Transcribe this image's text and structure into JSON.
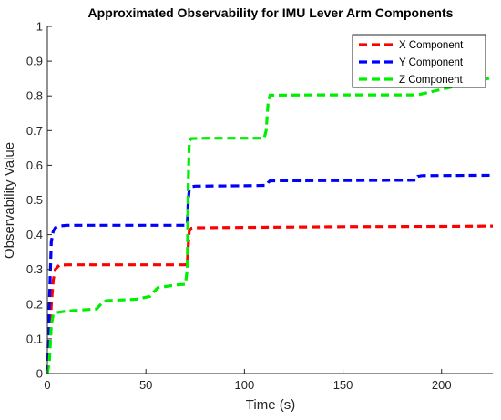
{
  "chart_data": {
    "type": "line",
    "title": "Approximated Observability for IMU Lever Arm Components",
    "xlabel": "Time (s)",
    "ylabel": "Observability Value",
    "xlim": [
      0,
      226
    ],
    "ylim": [
      0,
      1
    ],
    "xticks": [
      0,
      50,
      100,
      150,
      200
    ],
    "yticks": [
      0,
      0.1,
      0.2,
      0.3,
      0.4,
      0.5,
      0.6,
      0.7,
      0.8,
      0.9,
      1
    ],
    "grid": false,
    "legend_position": "top-right",
    "series": [
      {
        "name": "X Component",
        "color": "#ff0000",
        "dash": "dashed",
        "x": [
          0,
          1,
          2,
          3,
          4,
          6,
          10,
          50,
          70,
          71,
          71.5,
          72,
          73,
          75,
          100,
          150,
          200,
          226
        ],
        "y": [
          0,
          0.08,
          0.2,
          0.27,
          0.3,
          0.312,
          0.313,
          0.313,
          0.313,
          0.315,
          0.37,
          0.41,
          0.418,
          0.42,
          0.421,
          0.423,
          0.424,
          0.425
        ]
      },
      {
        "name": "Y Component",
        "color": "#0000ff",
        "dash": "dashed",
        "x": [
          0,
          1,
          2,
          3,
          4,
          6,
          10,
          50,
          70,
          71,
          71.5,
          72,
          73,
          75,
          100,
          111,
          112,
          113,
          150,
          187,
          188,
          190,
          226
        ],
        "y": [
          0,
          0.2,
          0.38,
          0.41,
          0.42,
          0.425,
          0.427,
          0.427,
          0.427,
          0.43,
          0.5,
          0.53,
          0.538,
          0.54,
          0.541,
          0.542,
          0.55,
          0.555,
          0.556,
          0.557,
          0.568,
          0.57,
          0.571
        ]
      },
      {
        "name": "Z Component",
        "color": "#00ee00",
        "dash": "dashed",
        "x": [
          0,
          1,
          2,
          3,
          4,
          10,
          25,
          28,
          30,
          45,
          52,
          54,
          56,
          65,
          70,
          71,
          71.5,
          72,
          73,
          80,
          110,
          111,
          112,
          113,
          140,
          180,
          188,
          226
        ],
        "y": [
          0,
          0.03,
          0.14,
          0.17,
          0.175,
          0.18,
          0.186,
          0.205,
          0.21,
          0.214,
          0.222,
          0.235,
          0.247,
          0.255,
          0.257,
          0.3,
          0.55,
          0.67,
          0.677,
          0.678,
          0.678,
          0.7,
          0.78,
          0.802,
          0.803,
          0.803,
          0.803,
          0.853
        ]
      }
    ]
  }
}
